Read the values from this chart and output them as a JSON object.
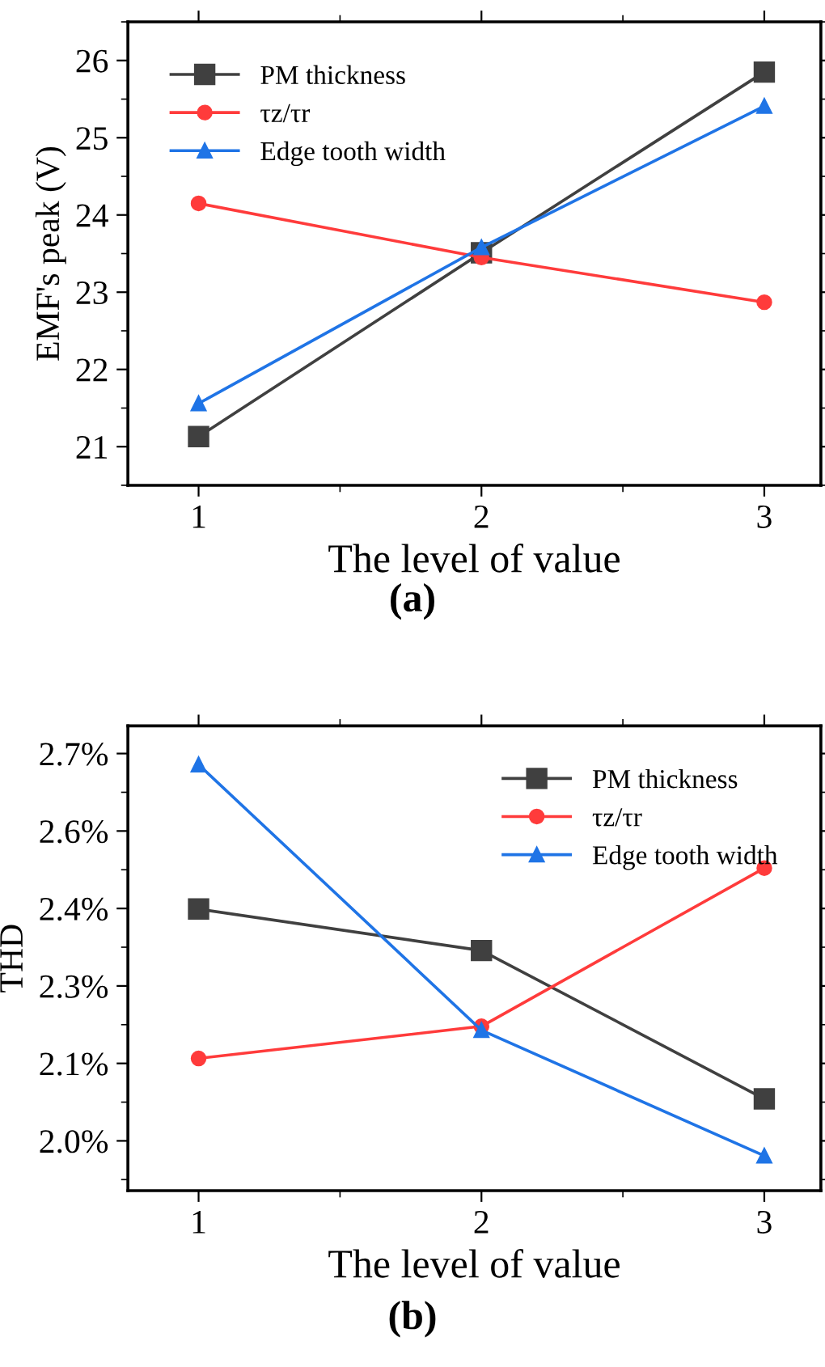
{
  "chart_data": [
    {
      "type": "line",
      "xlabel": "The level of value",
      "ylabel": "EMF's peak (V)",
      "x": [
        1,
        2,
        3
      ],
      "xlim": [
        0.75,
        3.2
      ],
      "xticks": [
        1,
        2,
        3
      ],
      "ylim": [
        20.5,
        26.5
      ],
      "yticks": [
        21,
        22,
        23,
        24,
        25,
        26
      ],
      "legend": "top left",
      "grid": false,
      "series": [
        {
          "name": "PM thickness",
          "color": "#404040",
          "marker": "square",
          "values": [
            21.13,
            23.51,
            25.85
          ]
        },
        {
          "name": "τz/τr",
          "color": "#ff3b3b",
          "marker": "circle",
          "values": [
            24.15,
            23.45,
            22.87
          ]
        },
        {
          "name": "Edge tooth width",
          "color": "#1f74e6",
          "marker": "triangle",
          "values": [
            21.56,
            23.58,
            25.41
          ]
        }
      ],
      "annotations": [
        "(a)"
      ]
    },
    {
      "type": "line",
      "xlabel": "The level of value",
      "ylabel": "THD",
      "x": [
        1,
        2,
        3
      ],
      "xlim": [
        0.75,
        3.2
      ],
      "xticks": [
        1,
        2,
        3
      ],
      "ylim": [
        1.91,
        2.75
      ],
      "yticks": [
        {
          "value": 2.0,
          "label": "2.0%"
        },
        {
          "value": 2.14,
          "label": "2.1%"
        },
        {
          "value": 2.28,
          "label": "2.3%"
        },
        {
          "value": 2.42,
          "label": "2.4%"
        },
        {
          "value": 2.56,
          "label": "2.6%"
        },
        {
          "value": 2.7,
          "label": "2.7%"
        }
      ],
      "legend": "top right",
      "grid": false,
      "series": [
        {
          "name": "PM thickness",
          "color": "#404040",
          "marker": "square",
          "values": [
            2.419,
            2.344,
            2.076
          ]
        },
        {
          "name": "τz/τr",
          "color": "#ff3b3b",
          "marker": "circle",
          "values": [
            2.149,
            2.207,
            2.493
          ]
        },
        {
          "name": "Edge tooth width",
          "color": "#1f74e6",
          "marker": "triangle",
          "values": [
            2.68,
            2.2,
            1.973
          ]
        }
      ],
      "annotations": [
        "(b)"
      ]
    }
  ]
}
